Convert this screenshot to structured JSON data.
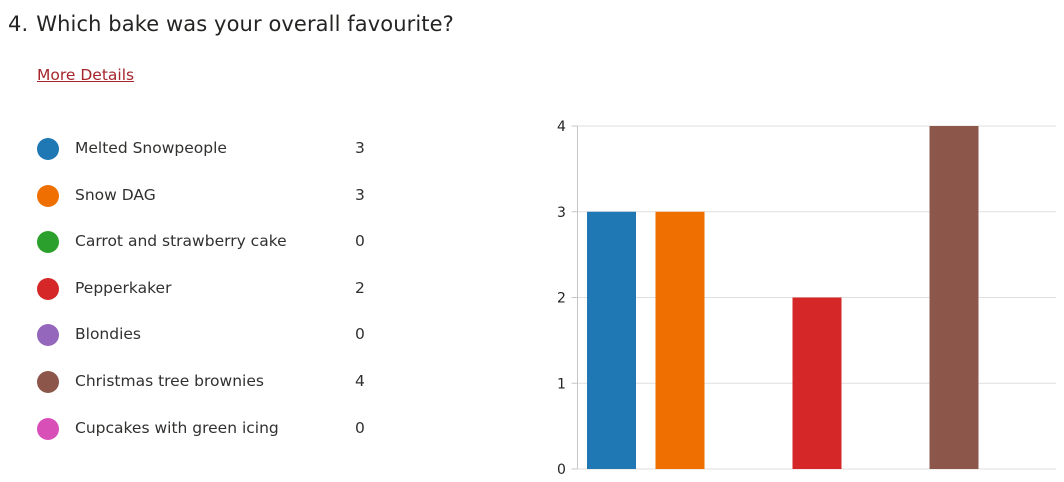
{
  "question": {
    "number": "4.",
    "title": "Which bake was your overall favourite?",
    "more_details_label": "More Details"
  },
  "legend": {
    "items": [
      {
        "label": "Melted Snowpeople",
        "count": "3",
        "color": "#1f77b4"
      },
      {
        "label": "Snow DAG",
        "count": "3",
        "color": "#ef7000"
      },
      {
        "label": "Carrot and strawberry cake",
        "count": "0",
        "color": "#2ca02c"
      },
      {
        "label": "Pepperkaker",
        "count": "2",
        "color": "#d62728"
      },
      {
        "label": "Blondies",
        "count": "0",
        "color": "#9467bd"
      },
      {
        "label": "Christmas tree brownies",
        "count": "4",
        "color": "#8c564b"
      },
      {
        "label": "Cupcakes with green icing",
        "count": "0",
        "color": "#d94fb8"
      }
    ]
  },
  "chart_data": {
    "type": "bar",
    "categories": [
      "Melted Snowpeople",
      "Snow DAG",
      "Carrot and strawberry cake",
      "Pepperkaker",
      "Blondies",
      "Christmas tree brownies",
      "Cupcakes with green icing"
    ],
    "values": [
      3,
      3,
      0,
      2,
      0,
      4,
      0
    ],
    "colors": [
      "#1f77b4",
      "#ef7000",
      "#2ca02c",
      "#d62728",
      "#9467bd",
      "#8c564b",
      "#d94fb8"
    ],
    "ylim": [
      0,
      4
    ],
    "yticks": [
      "0",
      "1",
      "2",
      "3",
      "4"
    ],
    "grid": true,
    "title": "",
    "xlabel": "",
    "ylabel": ""
  }
}
